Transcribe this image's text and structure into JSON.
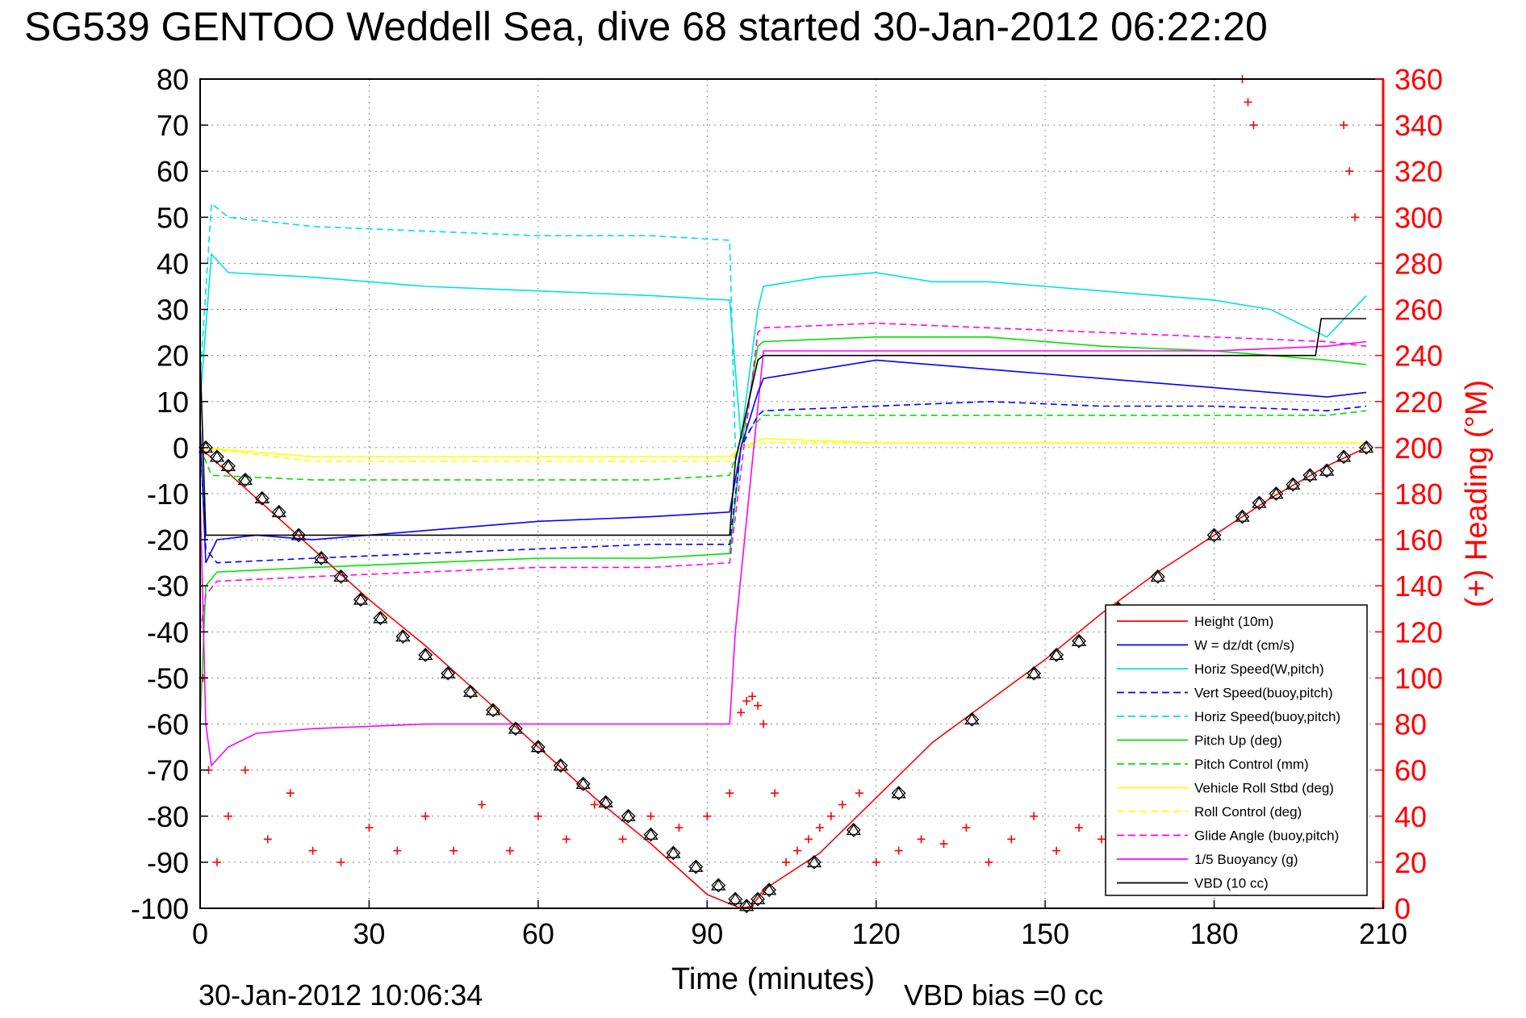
{
  "chart_data": {
    "type": "line",
    "title": "SG539 GENTOO Weddell Sea, dive 68 started 30-Jan-2012 06:22:20",
    "xlabel": "Time (minutes)",
    "ylabel": "",
    "ylabel_right": "(+) Heading (°M)",
    "xlim": [
      0,
      210
    ],
    "ylim": [
      -100,
      80
    ],
    "ylim_right": [
      0,
      360
    ],
    "x_ticks": [
      "0",
      "30",
      "60",
      "90",
      "120",
      "150",
      "180",
      "210"
    ],
    "y_ticks": [
      "80",
      "70",
      "60",
      "50",
      "40",
      "30",
      "20",
      "10",
      "0",
      "-10",
      "-20",
      "-30",
      "-40",
      "-50",
      "-60",
      "-70",
      "-80",
      "-90",
      "-100"
    ],
    "y_right_ticks": [
      "360",
      "340",
      "320",
      "300",
      "280",
      "260",
      "240",
      "220",
      "200",
      "180",
      "160",
      "140",
      "120",
      "100",
      "80",
      "60",
      "40",
      "20",
      "0"
    ],
    "grid": true,
    "legend_placement": "lower-right",
    "footer_time": "30-Jan-2012 10:06:34",
    "footer_note": "VBD bias =0 cc",
    "series": [
      {
        "name": "Height (10m)",
        "color": "#ff0000",
        "style": "solid",
        "x": [
          0,
          10,
          20,
          30,
          40,
          50,
          60,
          70,
          80,
          90,
          96,
          98,
          100,
          110,
          120,
          130,
          140,
          150,
          160,
          170,
          180,
          190,
          200,
          207
        ],
        "y": [
          0,
          -11,
          -22,
          -33,
          -43,
          -54,
          -65,
          -76,
          -86,
          -97,
          -100,
          -99.5,
          -96,
          -88,
          -76,
          -64,
          -55,
          -46,
          -36,
          -27,
          -19,
          -11,
          -4,
          0
        ]
      },
      {
        "name": "W = dz/dt (cm/s)",
        "color": "#0000ff",
        "style": "solid",
        "x": [
          0,
          1,
          3,
          10,
          20,
          40,
          60,
          80,
          94,
          96,
          99,
          100,
          110,
          120,
          130,
          140,
          150,
          160,
          170,
          180,
          190,
          200,
          207
        ],
        "y": [
          5,
          -25,
          -20,
          -19,
          -20,
          -18,
          -16,
          -15,
          -14,
          0,
          12,
          15,
          17,
          19,
          18,
          17,
          16,
          15,
          14,
          13,
          12,
          11,
          12
        ]
      },
      {
        "name": "Horiz Speed(W,pitch)",
        "color": "#00e0e0",
        "style": "solid",
        "x": [
          0,
          2,
          5,
          20,
          40,
          60,
          80,
          94,
          96,
          99,
          100,
          110,
          120,
          130,
          140,
          150,
          160,
          170,
          180,
          190,
          200,
          207
        ],
        "y": [
          10,
          42,
          38,
          37,
          35,
          34,
          33,
          32,
          2,
          30,
          35,
          37,
          38,
          36,
          36,
          35,
          34,
          33,
          32,
          30,
          24,
          33
        ]
      },
      {
        "name": "Vert Speed(buoy,pitch)",
        "color": "#0000ff",
        "style": "dashed",
        "x": [
          0,
          1,
          3,
          20,
          40,
          60,
          80,
          94,
          96,
          99,
          100,
          120,
          140,
          160,
          180,
          200,
          207
        ],
        "y": [
          2,
          -22,
          -25,
          -24,
          -23,
          -22,
          -21,
          -21,
          0,
          7,
          8,
          9,
          10,
          9,
          9,
          8,
          9
        ]
      },
      {
        "name": "Horiz Speed(buoy,pitch)",
        "color": "#00e0e0",
        "style": "dashed",
        "x": [
          0,
          2,
          5,
          20,
          40,
          60,
          80,
          94,
          95
        ],
        "y": [
          15,
          53,
          50,
          48,
          47,
          46,
          46,
          45,
          0
        ]
      },
      {
        "name": "Pitch Up (deg)",
        "color": "#00e000",
        "style": "solid",
        "x": [
          0,
          1,
          3,
          20,
          40,
          60,
          80,
          94,
          96,
          99,
          100,
          120,
          140,
          160,
          180,
          200,
          207
        ],
        "y": [
          -60,
          -30,
          -27,
          -26,
          -25,
          -24,
          -24,
          -23,
          0,
          22,
          23,
          24,
          24,
          22,
          21,
          19,
          18
        ]
      },
      {
        "name": "Pitch Control (mm)",
        "color": "#00e000",
        "style": "dashed",
        "x": [
          0,
          2,
          20,
          40,
          60,
          80,
          94,
          96,
          100,
          120,
          140,
          160,
          180,
          200,
          207
        ],
        "y": [
          0,
          -6,
          -7,
          -7,
          -7,
          -7,
          -6,
          2,
          7,
          7,
          7,
          7,
          7,
          7,
          8
        ]
      },
      {
        "name": "Vehicle Roll Stbd (deg)",
        "color": "#ffff00",
        "style": "solid",
        "x": [
          0,
          20,
          40,
          60,
          80,
          94,
          96,
          100,
          120,
          140,
          160,
          180,
          200,
          207
        ],
        "y": [
          0,
          -2,
          -2,
          -2,
          -2,
          -2,
          0,
          2,
          1,
          1,
          1,
          1,
          1,
          1
        ]
      },
      {
        "name": "Roll Control (deg)",
        "color": "#ffff00",
        "style": "dashed",
        "x": [
          0,
          20,
          40,
          60,
          80,
          94,
          96,
          100,
          120,
          140,
          160,
          180,
          200,
          207
        ],
        "y": [
          0,
          -3,
          -3,
          -3,
          -3,
          -3,
          0,
          1,
          1,
          1,
          1,
          1,
          1,
          1
        ]
      },
      {
        "name": "Glide Angle (buoy,pitch)",
        "color": "#ff00ff",
        "style": "dashed",
        "x": [
          0,
          1,
          3,
          20,
          40,
          60,
          80,
          94,
          96,
          99,
          100,
          120,
          140,
          160,
          180,
          200,
          207
        ],
        "y": [
          -40,
          -32,
          -29,
          -28,
          -27,
          -26,
          -26,
          -25,
          -5,
          25,
          26,
          27,
          26,
          25,
          24,
          23,
          22
        ]
      },
      {
        "name": "1/5 Buoyancy (g)",
        "color": "#ff00ff",
        "style": "solid",
        "x": [
          0,
          1,
          2,
          5,
          10,
          20,
          40,
          60,
          80,
          94,
          95,
          100,
          120,
          140,
          160,
          180,
          200,
          207
        ],
        "y": [
          -10,
          -60,
          -69,
          -65,
          -62,
          -61,
          -60,
          -60,
          -60,
          -60,
          -40,
          21,
          21,
          21,
          21,
          21,
          22,
          23
        ]
      },
      {
        "name": "VBD (10 cc)",
        "color": "#000000",
        "style": "solid",
        "x": [
          0,
          1,
          2,
          20,
          40,
          60,
          80,
          94,
          95,
          99,
          100,
          120,
          140,
          160,
          180,
          198,
          199,
          207
        ],
        "y": [
          20,
          -19,
          -19,
          -19,
          -19,
          -19,
          -19,
          -19,
          -3,
          19,
          20,
          20,
          20,
          20,
          20,
          20,
          28,
          28
        ]
      }
    ],
    "heading_points": {
      "name": "Heading",
      "axis": "right",
      "color": "#ff0000",
      "marker": "+",
      "x": [
        0.5,
        1.5,
        3,
        5,
        8,
        12,
        16,
        20,
        25,
        30,
        35,
        40,
        45,
        50,
        55,
        60,
        65,
        70,
        75,
        80,
        85,
        90,
        94,
        96,
        97,
        98,
        99,
        100,
        102,
        104,
        106,
        108,
        110,
        112,
        114,
        117,
        120,
        124,
        128,
        132,
        136,
        140,
        144,
        148,
        152,
        156,
        160,
        164,
        185,
        186,
        187,
        203,
        204,
        205
      ],
      "y": [
        100,
        60,
        20,
        40,
        60,
        30,
        50,
        25,
        20,
        35,
        25,
        40,
        25,
        45,
        25,
        40,
        30,
        45,
        30,
        40,
        35,
        40,
        50,
        85,
        90,
        92,
        88,
        80,
        50,
        20,
        25,
        30,
        35,
        40,
        45,
        50,
        20,
        25,
        30,
        28,
        35,
        20,
        30,
        40,
        25,
        35,
        30,
        40,
        360,
        350,
        340,
        340,
        320,
        300
      ]
    },
    "dive_markers": {
      "name": "Height markers",
      "marker": "triangle-diamond",
      "color": "#000000",
      "x": [
        1,
        3,
        5,
        8,
        11,
        14,
        17.5,
        21.5,
        25,
        28.5,
        32,
        36,
        40,
        44,
        48,
        52,
        56,
        60,
        64,
        68,
        72,
        76,
        80,
        84,
        88,
        92,
        95,
        97,
        99,
        101,
        109,
        116,
        124,
        137,
        148,
        152,
        156,
        163,
        170,
        180,
        185,
        188,
        191,
        194,
        197,
        200,
        203,
        207
      ],
      "y": [
        0,
        -2,
        -4,
        -7,
        -11,
        -14,
        -19,
        -24,
        -28,
        -33,
        -37,
        -41,
        -45,
        -49,
        -53,
        -57,
        -61,
        -65,
        -69,
        -73,
        -77,
        -80,
        -84,
        -88,
        -91,
        -95,
        -98,
        -99.5,
        -98,
        -96,
        -90,
        -83,
        -75,
        -59,
        -49,
        -45,
        -42,
        -35,
        -28,
        -19,
        -15,
        -12,
        -10,
        -8,
        -6,
        -5,
        -2,
        0
      ]
    }
  }
}
